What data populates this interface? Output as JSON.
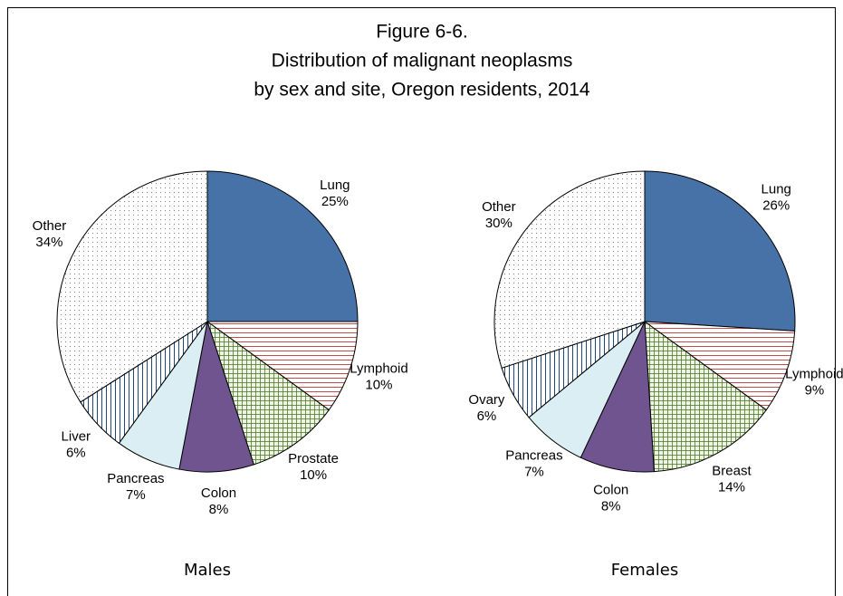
{
  "title": [
    "Figure 6-6.",
    "Distribution of malignant neoplasms",
    "by sex and site, Oregon residents, 2014"
  ],
  "chart_data": [
    {
      "type": "pie",
      "title": "Males",
      "categories": [
        "Lung",
        "Lymphoid",
        "Prostate",
        "Colon",
        "Pancreas",
        "Liver",
        "Other"
      ],
      "values": [
        25,
        10,
        10,
        8,
        7,
        6,
        34
      ],
      "value_labels": [
        "25%",
        "10%",
        "10%",
        "8%",
        "7%",
        "6%",
        "34%"
      ],
      "colors": [
        "#4672a8",
        "#c0504d",
        "#4f7a28",
        "#6f548f",
        "#daeef3",
        "#1f497d",
        "#7f7f7f"
      ],
      "patterns": [
        "solid",
        "horizontal",
        "crosshatch",
        "solid",
        "solid",
        "vertical",
        "dots"
      ]
    },
    {
      "type": "pie",
      "title": "Females",
      "categories": [
        "Lung",
        "Lymphoid",
        "Breast",
        "Colon",
        "Pancreas",
        "Ovary",
        "Other"
      ],
      "values": [
        26,
        9,
        14,
        8,
        7,
        6,
        30
      ],
      "value_labels": [
        "26%",
        "9%",
        "14%",
        "8%",
        "7%",
        "6%",
        "30%"
      ],
      "colors": [
        "#4672a8",
        "#c0504d",
        "#4f7a28",
        "#6f548f",
        "#daeef3",
        "#1f497d",
        "#7f7f7f"
      ],
      "patterns": [
        "solid",
        "horizontal",
        "crosshatch",
        "solid",
        "solid",
        "vertical",
        "dots"
      ]
    }
  ]
}
